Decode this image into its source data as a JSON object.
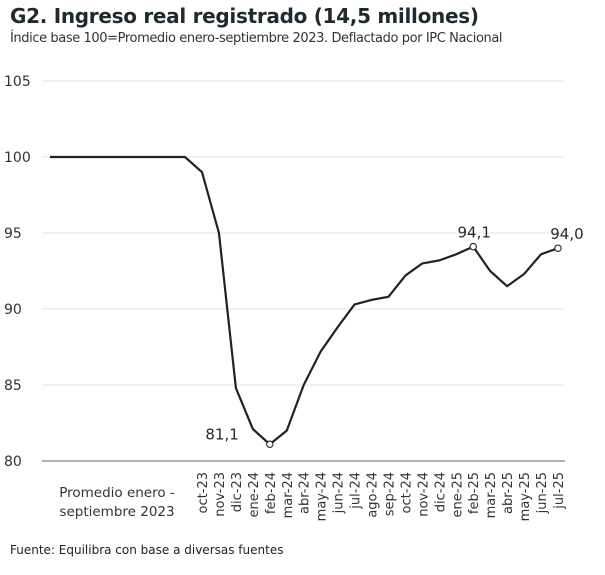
{
  "title": "G2. Ingreso real registrado (14,5 millones)",
  "subtitle": "Índice base 100=Promedio enero-septiembre 2023. Deflactado por IPC Nacional",
  "footer": "Fuente: Equilibra con base a diversas fuentes",
  "chart_data": {
    "type": "line",
    "title": "G2. Ingreso real registrado (14,5 millones)",
    "subtitle": "Índice base 100=Promedio enero-septiembre 2023. Deflactado por IPC Nacional",
    "xlabel": "",
    "ylabel": "",
    "ylim": [
      80,
      105
    ],
    "yticks": [
      "80",
      "85",
      "90",
      "95",
      "100",
      "105"
    ],
    "grid": true,
    "first_category_label": [
      "Promedio enero -",
      "septiembre 2023"
    ],
    "categories": [
      "Promedio enero - septiembre 2023",
      "oct-23",
      "nov-23",
      "dic-23",
      "ene-24",
      "feb-24",
      "mar-24",
      "abr-24",
      "may-24",
      "jun-24",
      "jul-24",
      "ago-24",
      "sep-24",
      "oct-24",
      "nov-24",
      "dic-24",
      "ene-25",
      "feb-25",
      "mar-25",
      "abr-25",
      "may-25",
      "jun-25",
      "jul-25"
    ],
    "series": [
      {
        "name": "Ingreso real registrado",
        "color": "#1b2529",
        "values": [
          100,
          99.0,
          95.0,
          84.8,
          82.1,
          81.1,
          82.0,
          85.0,
          87.2,
          88.8,
          90.3,
          90.6,
          90.8,
          92.2,
          93.0,
          93.2,
          93.6,
          94.1,
          92.5,
          91.5,
          92.3,
          93.6,
          94.0
        ]
      }
    ],
    "annotations": [
      {
        "category": "feb-24",
        "value": 81.1,
        "label": "81,1",
        "position": "left"
      },
      {
        "category": "feb-25",
        "value": 94.1,
        "label": "94,1",
        "position": "top"
      },
      {
        "category": "jul-25",
        "value": 94.0,
        "label": "94,0",
        "position": "top"
      }
    ],
    "marker_color": "#ffffff",
    "gridline_color": "#e4e4e4",
    "axis_color": "#666666"
  }
}
